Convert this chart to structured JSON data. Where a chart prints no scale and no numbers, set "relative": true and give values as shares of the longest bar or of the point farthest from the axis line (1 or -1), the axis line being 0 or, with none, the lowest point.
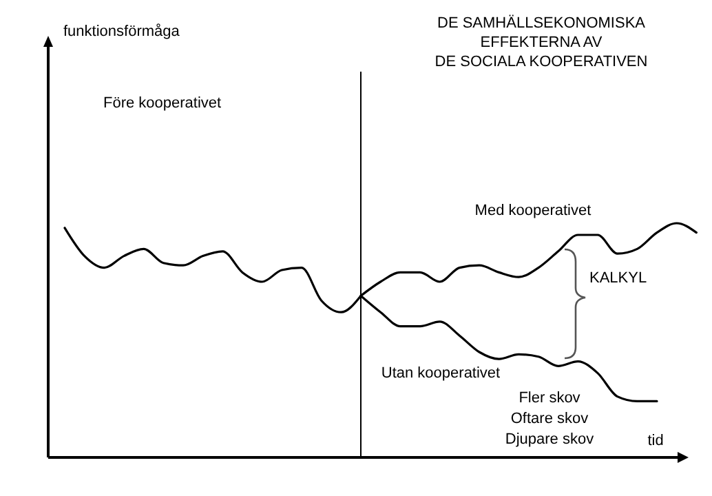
{
  "chart_data": {
    "type": "line",
    "relative": true,
    "title": "DE SAMHÄLLSEKONOMISKA\nEFFEKTERNA AV\nDE SOCIALA KOOPERATIVEN",
    "xlabel": "tid",
    "categories": [
      null,
      null,
      null,
      null,
      null,
      null,
      null,
      null,
      null,
      null,
      null,
      null,
      null,
      null,
      null,
      null,
      null,
      null,
      null,
      null,
      null,
      null,
      null,
      null,
      null,
      null,
      null,
      null,
      null,
      null,
      null,
      null,
      null
    ],
    "series": [
      {
        "color": "#000000",
        "values": [
          0.98,
          0.86,
          0.81,
          0.86,
          0.89,
          0.83,
          0.82,
          0.86,
          0.88,
          0.79,
          0.75,
          0.8,
          0.81,
          0.67,
          0.62,
          0.69,
          null,
          null,
          null,
          null,
          null,
          null,
          null,
          null,
          null,
          null,
          null,
          null,
          null,
          null,
          null,
          null,
          null
        ]
      },
      {
        "color": "#000000",
        "values": [
          null,
          null,
          null,
          null,
          null,
          null,
          null,
          null,
          null,
          null,
          null,
          null,
          null,
          null,
          null,
          0.69,
          0.75,
          0.79,
          0.79,
          0.75,
          0.81,
          0.82,
          0.79,
          0.77,
          0.81,
          0.88,
          0.95,
          0.95,
          0.87,
          0.89,
          0.96,
          1,
          0.96
        ]
      },
      {
        "color": "#000000",
        "values": [
          null,
          null,
          null,
          null,
          null,
          null,
          null,
          null,
          null,
          null,
          null,
          null,
          null,
          null,
          null,
          0.69,
          0.62,
          0.56,
          0.56,
          0.58,
          0.52,
          0.45,
          0.42,
          0.44,
          0.43,
          0.39,
          0.41,
          0.36,
          0.26,
          0.24,
          0.24,
          null,
          null
        ]
      }
    ],
    "annotations": [
      "Före kooperativet",
      "Med kooperativet",
      "Utan kooperativet",
      "KALKYL",
      "Fler skov\nOftare skov\nDjupare skov",
      "funktionsförmåga"
    ],
    "grid": false,
    "marker": "none",
    "line_style": "solid"
  }
}
